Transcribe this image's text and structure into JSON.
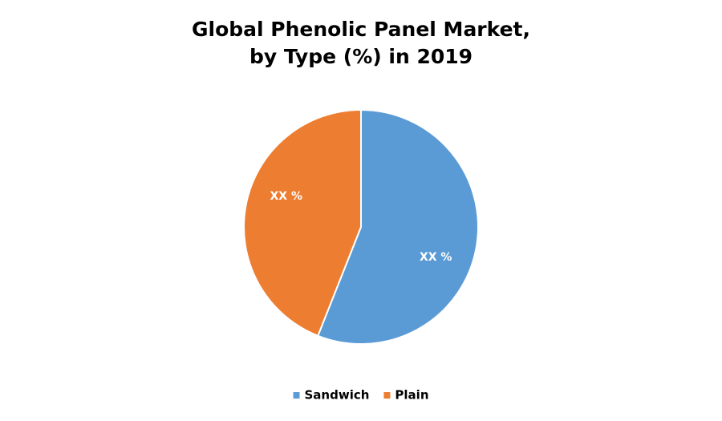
{
  "chart_data": {
    "type": "pie",
    "title": [
      "Global Phenolic Panel Market,",
      "by Type (%) in 2019"
    ],
    "categories": [
      "Sandwich",
      "Plain"
    ],
    "values": [
      56,
      44
    ],
    "value_labels": [
      "XX %",
      "XX %"
    ],
    "colors": [
      "#5b9bd5",
      "#ed7d31"
    ],
    "legend": "bottom"
  }
}
